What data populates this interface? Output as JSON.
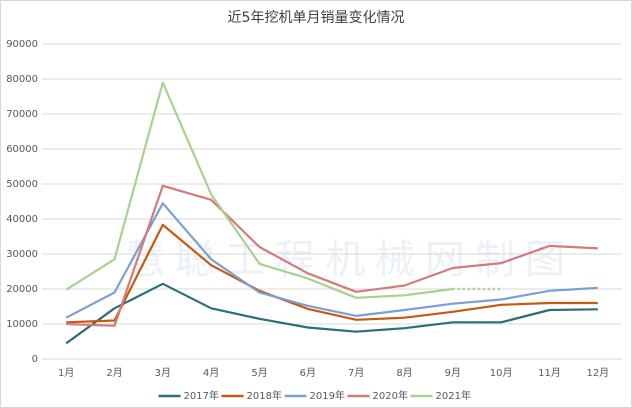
{
  "chart_data": {
    "type": "line",
    "title": "近5年挖机单月销量变化情况",
    "watermark": "慧聪工程机械网制图",
    "categories": [
      "1月",
      "2月",
      "3月",
      "4月",
      "5月",
      "6月",
      "7月",
      "8月",
      "9月",
      "10月",
      "11月",
      "12月"
    ],
    "ylim": [
      0,
      90000
    ],
    "yticks": [
      0,
      10000,
      20000,
      30000,
      40000,
      50000,
      60000,
      70000,
      80000,
      90000
    ],
    "grid": true,
    "legend": "bottom",
    "series": [
      {
        "name": "2017年",
        "color": "#2a6f7a",
        "values": [
          4500,
          14500,
          21500,
          14500,
          11500,
          9000,
          7800,
          8800,
          10500,
          10500,
          14000,
          14200
        ]
      },
      {
        "name": "2018年",
        "color": "#c55a11",
        "values": [
          10500,
          11000,
          38300,
          26800,
          19500,
          14300,
          11200,
          11800,
          13500,
          15500,
          16000,
          16000
        ]
      },
      {
        "name": "2019年",
        "color": "#7aa0d4",
        "values": [
          11800,
          19000,
          44500,
          28500,
          19000,
          15200,
          12300,
          14000,
          15800,
          17000,
          19500,
          20300
        ]
      },
      {
        "name": "2020年",
        "color": "#d47a7a",
        "values": [
          10000,
          9500,
          49500,
          45500,
          32000,
          24500,
          19200,
          21000,
          26000,
          27400,
          32300,
          31600
        ]
      },
      {
        "name": "2021年",
        "color": "#a9d18e",
        "dashed_from_index": 8,
        "values": [
          19800,
          28500,
          79000,
          47000,
          27200,
          23000,
          17500,
          18200,
          20000,
          20000,
          null,
          null
        ]
      }
    ]
  }
}
